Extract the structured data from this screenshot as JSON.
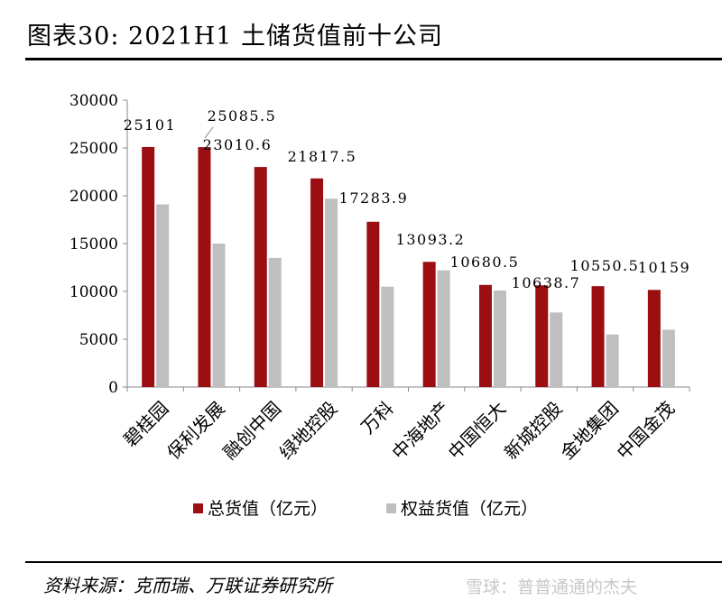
{
  "header": {
    "title": "图表30: 2021H1 土储货值前十公司"
  },
  "chart_data": {
    "type": "bar",
    "categories": [
      "碧桂园",
      "保利发展",
      "融创中国",
      "绿地控股",
      "万科",
      "中海地产",
      "中国恒大",
      "新城控股",
      "金地集团",
      "中国金茂"
    ],
    "series": [
      {
        "name": "总货值（亿元）",
        "color": "#9b0f12",
        "values": [
          25101,
          25085.5,
          23010.6,
          21817.5,
          17283.9,
          13093.2,
          10680.5,
          10638.7,
          10550.5,
          10159
        ]
      },
      {
        "name": "权益货值（亿元）",
        "color": "#bfbfbf",
        "values": [
          19100,
          15000,
          13500,
          19700,
          10500,
          12200,
          10100,
          7800,
          5500,
          6000
        ]
      }
    ],
    "data_labels": [
      "25101",
      "25085.5",
      "23010.6",
      "21817.5",
      "17283.9",
      "13093.2",
      "10680.5",
      "10638.7",
      "10550.5",
      "10159"
    ],
    "ylim": [
      0,
      30000
    ],
    "yticks": [
      0,
      5000,
      10000,
      15000,
      20000,
      25000,
      30000
    ],
    "grid": false,
    "legend": "bottom"
  },
  "footer": {
    "source": "资料来源：克而瑞、万联证券研究所",
    "watermark": "雪球：普普通通的杰夫"
  }
}
